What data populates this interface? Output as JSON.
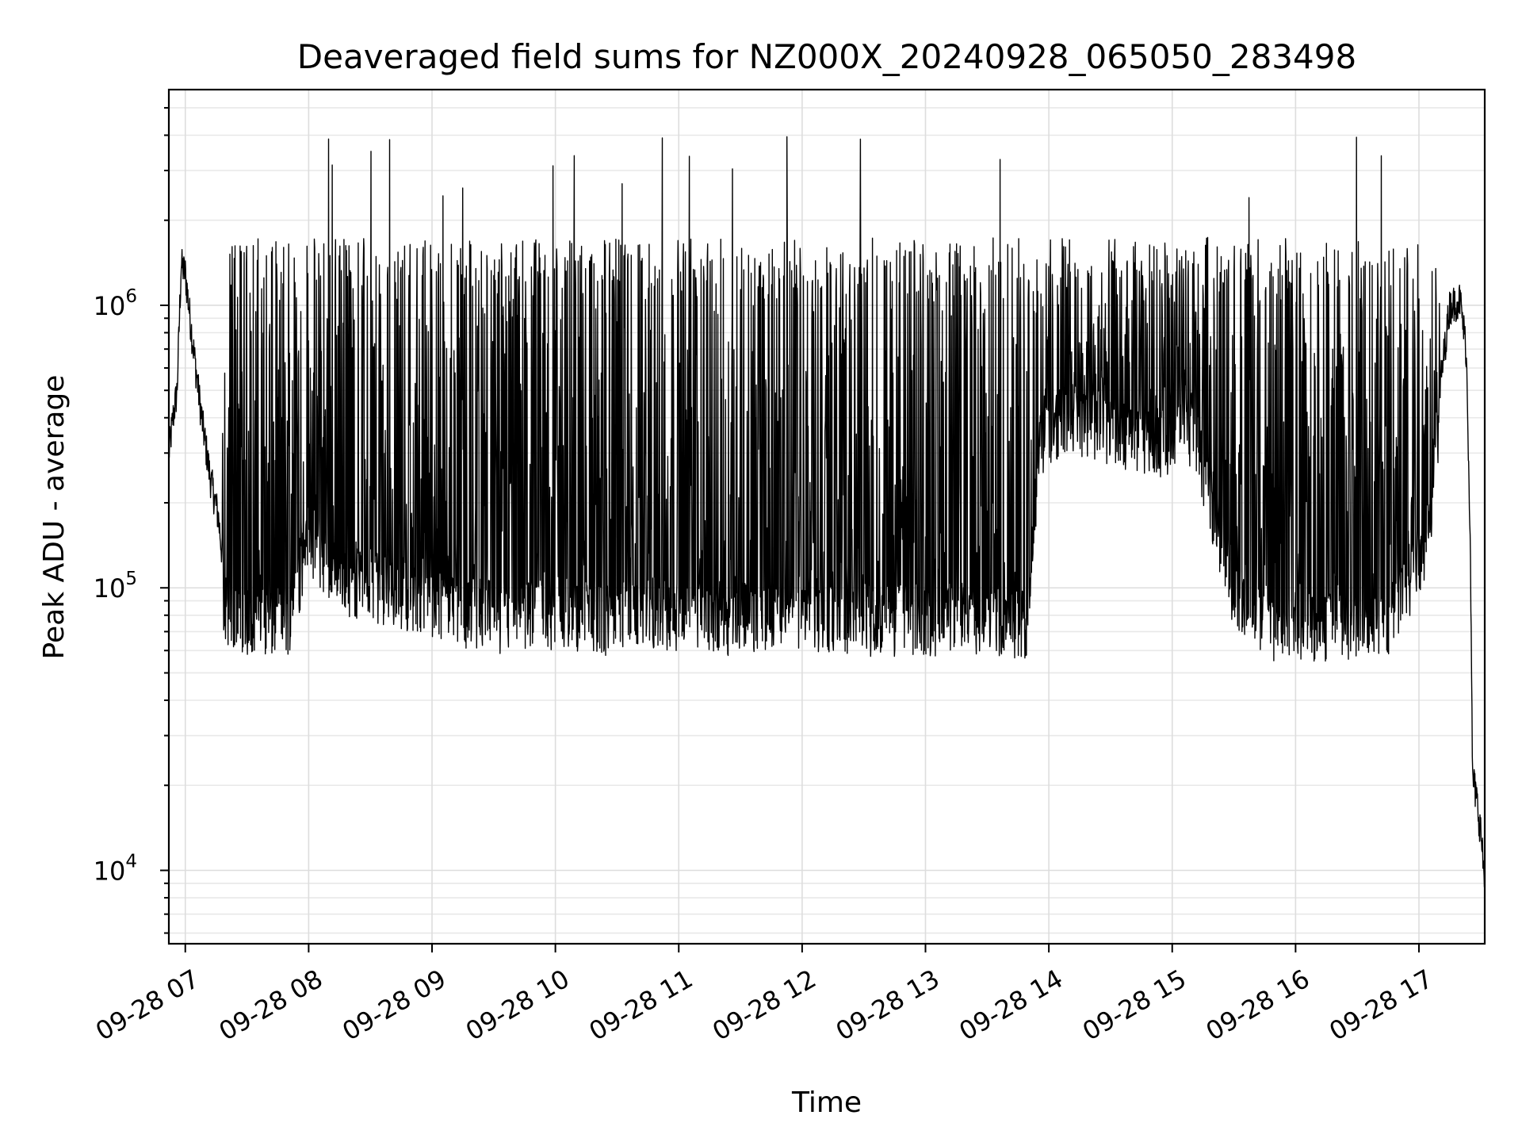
{
  "chart_data": {
    "type": "line",
    "title": "Deaveraged field sums for NZ000X_20240928_065050_283498",
    "xlabel": "Time",
    "ylabel": "Peak ADU - average",
    "yscale": "log",
    "xlim": [
      "2024-09-28 06:52",
      "2024-09-28 17:32"
    ],
    "ylim": [
      5500,
      5800000
    ],
    "grid": true,
    "legend": "none",
    "line_color": "#000000",
    "x_ticks": [
      {
        "value": "2024-09-28 07:00",
        "label": "09-28 07"
      },
      {
        "value": "2024-09-28 08:00",
        "label": "09-28 08"
      },
      {
        "value": "2024-09-28 09:00",
        "label": "09-28 09"
      },
      {
        "value": "2024-09-28 10:00",
        "label": "09-28 10"
      },
      {
        "value": "2024-09-28 11:00",
        "label": "09-28 11"
      },
      {
        "value": "2024-09-28 12:00",
        "label": "09-28 12"
      },
      {
        "value": "2024-09-28 13:00",
        "label": "09-28 13"
      },
      {
        "value": "2024-09-28 14:00",
        "label": "09-28 14"
      },
      {
        "value": "2024-09-28 15:00",
        "label": "09-28 15"
      },
      {
        "value": "2024-09-28 16:00",
        "label": "09-28 16"
      },
      {
        "value": "2024-09-28 17:00",
        "label": "09-28 17"
      }
    ],
    "y_ticks": [
      {
        "value": 10000,
        "base": "10",
        "exp": "4"
      },
      {
        "value": 100000,
        "base": "10",
        "exp": "5"
      },
      {
        "value": 1000000,
        "base": "10",
        "exp": "6"
      }
    ],
    "series": [
      {
        "points": [
          [
            "2024-09-28 06:52",
            300000
          ],
          [
            "2024-09-28 06:54",
            400000
          ],
          [
            "2024-09-28 06:56",
            500000
          ],
          [
            "2024-09-28 06:58",
            1400000
          ],
          [
            "2024-09-28 07:00",
            1300000
          ],
          [
            "2024-09-28 07:04",
            700000
          ],
          [
            "2024-09-28 07:08",
            400000
          ],
          [
            "2024-09-28 07:12",
            250000
          ],
          [
            "2024-09-28 07:16",
            180000
          ],
          [
            "2024-09-28 07:20",
            95000
          ],
          [
            "2024-09-28 07:30",
            95000
          ],
          [
            "2024-09-28 07:40",
            90000
          ],
          [
            "2024-09-28 07:50",
            95000
          ],
          [
            "2024-09-28 08:00",
            180000
          ],
          [
            "2024-09-28 08:10",
            150000
          ],
          [
            "2024-09-28 08:20",
            130000
          ],
          [
            "2024-09-28 08:40",
            120000
          ],
          [
            "2024-09-28 09:00",
            110000
          ],
          [
            "2024-09-28 09:20",
            100000
          ],
          [
            "2024-09-28 09:40",
            95000
          ],
          [
            "2024-09-28 10:00",
            100000
          ],
          [
            "2024-09-28 10:30",
            95000
          ],
          [
            "2024-09-28 11:00",
            100000
          ],
          [
            "2024-09-28 11:30",
            95000
          ],
          [
            "2024-09-28 12:00",
            100000
          ],
          [
            "2024-09-28 12:30",
            95000
          ],
          [
            "2024-09-28 13:00",
            95000
          ],
          [
            "2024-09-28 13:30",
            95000
          ],
          [
            "2024-09-28 13:50",
            90000
          ],
          [
            "2024-09-28 13:55",
            400000
          ],
          [
            "2024-09-28 14:10",
            500000
          ],
          [
            "2024-09-28 14:30",
            450000
          ],
          [
            "2024-09-28 14:50",
            400000
          ],
          [
            "2024-09-28 15:10",
            450000
          ],
          [
            "2024-09-28 15:30",
            120000
          ],
          [
            "2024-09-28 15:50",
            90000
          ],
          [
            "2024-09-28 16:10",
            85000
          ],
          [
            "2024-09-28 16:30",
            85000
          ],
          [
            "2024-09-28 16:45",
            90000
          ],
          [
            "2024-09-28 16:55",
            120000
          ],
          [
            "2024-09-28 17:05",
            200000
          ],
          [
            "2024-09-28 17:10",
            500000
          ],
          [
            "2024-09-28 17:15",
            1000000
          ],
          [
            "2024-09-28 17:20",
            1050000
          ],
          [
            "2024-09-28 17:23",
            700000
          ],
          [
            "2024-09-28 17:25",
            150000
          ],
          [
            "2024-09-28 17:26",
            22000
          ],
          [
            "2024-09-28 17:28",
            18000
          ],
          [
            "2024-09-28 17:30",
            14000
          ],
          [
            "2024-09-28 17:32",
            9000
          ]
        ]
      }
    ]
  }
}
